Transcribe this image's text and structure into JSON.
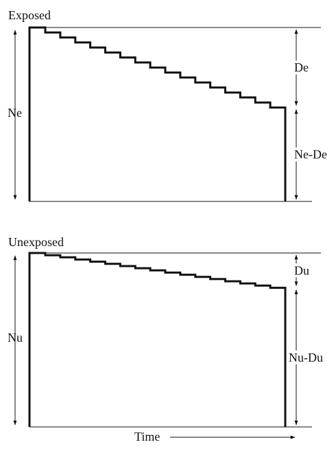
{
  "colors": {
    "line": "#111111",
    "background": "#ffffff"
  },
  "panels": [
    {
      "title": "Exposed",
      "total_label": "Ne",
      "events_label": "De",
      "remaining_label": "Ne-De",
      "steps": 16,
      "final_fraction": 0.54
    },
    {
      "title": "Unexposed",
      "total_label": "Nu",
      "events_label": "Du",
      "remaining_label": "Nu-Du",
      "steps": 16,
      "final_fraction": 0.8
    }
  ],
  "time_label": "Time"
}
